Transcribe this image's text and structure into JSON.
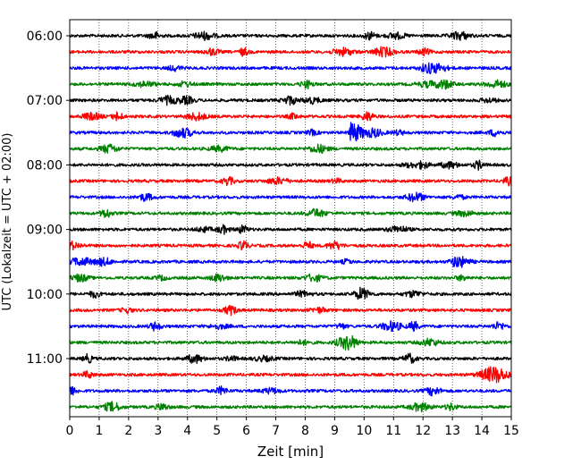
{
  "chart_data": {
    "type": "line",
    "subtype": "helicorder",
    "title": "",
    "xlabel": "Zeit  [min]",
    "ylabel": "UTC (Lokalzeit = UTC + 02:00)",
    "xlim": [
      0,
      15
    ],
    "x_ticks": [
      "0",
      "1",
      "2",
      "3",
      "4",
      "5",
      "6",
      "7",
      "8",
      "9",
      "10",
      "11",
      "12",
      "13",
      "14",
      "15"
    ],
    "vertical_grid": "dotted, every 1 min",
    "y_ticks": [
      "06:00",
      "07:00",
      "08:00",
      "09:00",
      "10:00",
      "11:00"
    ],
    "trace_interval_minutes": 15,
    "trace_color_cycle": [
      "#000000",
      "#ff0000",
      "#0000ff",
      "#008000"
    ],
    "traces": [
      {
        "start": "06:00",
        "color": "#000000"
      },
      {
        "start": "06:15",
        "color": "#ff0000"
      },
      {
        "start": "06:30",
        "color": "#0000ff"
      },
      {
        "start": "06:45",
        "color": "#008000"
      },
      {
        "start": "07:00",
        "color": "#000000"
      },
      {
        "start": "07:15",
        "color": "#ff0000"
      },
      {
        "start": "07:30",
        "color": "#0000ff",
        "event": {
          "time_min": 9.6,
          "amplitude": "large"
        }
      },
      {
        "start": "07:45",
        "color": "#008000"
      },
      {
        "start": "08:00",
        "color": "#000000"
      },
      {
        "start": "08:15",
        "color": "#ff0000"
      },
      {
        "start": "08:30",
        "color": "#0000ff"
      },
      {
        "start": "08:45",
        "color": "#008000"
      },
      {
        "start": "09:00",
        "color": "#000000"
      },
      {
        "start": "09:15",
        "color": "#ff0000"
      },
      {
        "start": "09:30",
        "color": "#0000ff"
      },
      {
        "start": "09:45",
        "color": "#008000"
      },
      {
        "start": "10:00",
        "color": "#000000"
      },
      {
        "start": "10:15",
        "color": "#ff0000"
      },
      {
        "start": "10:30",
        "color": "#0000ff"
      },
      {
        "start": "10:45",
        "color": "#008000"
      },
      {
        "start": "11:00",
        "color": "#000000"
      },
      {
        "start": "11:15",
        "color": "#ff0000"
      },
      {
        "start": "11:30",
        "color": "#0000ff"
      },
      {
        "start": "11:45",
        "color": "#008000"
      }
    ]
  }
}
